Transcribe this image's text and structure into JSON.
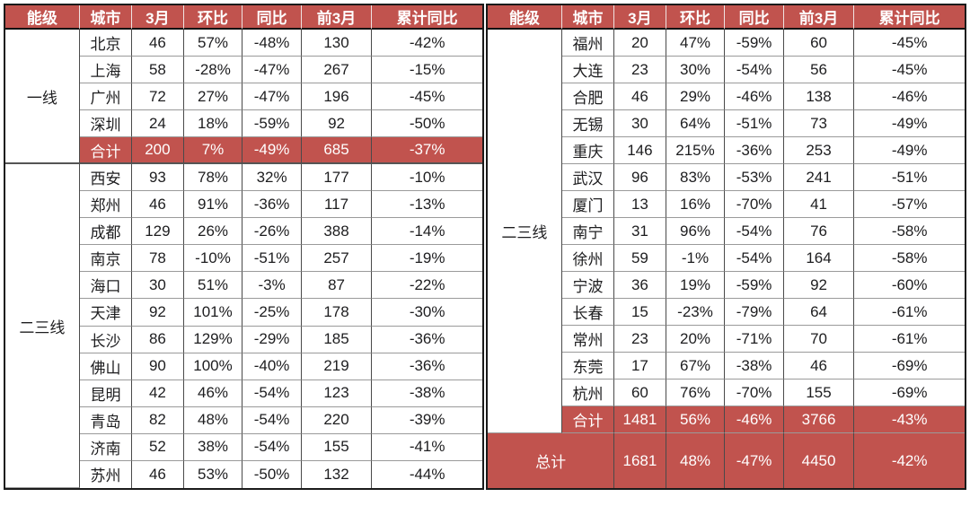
{
  "colors": {
    "accent_red": "#c1534e",
    "header_text": "#ffffff",
    "body_text": "#1d1d1f",
    "grid_dark": "#4a4a4a",
    "grid_light": "#9a9a9a"
  },
  "chart_data": {
    "type": "table",
    "columns": [
      "能级",
      "城市",
      "3月",
      "环比",
      "同比",
      "前3月",
      "累计同比"
    ],
    "left": {
      "groups": [
        {
          "tier": "一线",
          "cities": [
            [
              "北京",
              "46",
              "57%",
              "-48%",
              "130",
              "-42%"
            ],
            [
              "上海",
              "58",
              "-28%",
              "-47%",
              "267",
              "-15%"
            ],
            [
              "广州",
              "72",
              "27%",
              "-47%",
              "196",
              "-45%"
            ],
            [
              "深圳",
              "24",
              "18%",
              "-59%",
              "92",
              "-50%"
            ]
          ],
          "subtotal": [
            "合计",
            "200",
            "7%",
            "-49%",
            "685",
            "-37%"
          ]
        },
        {
          "tier": "二三线",
          "cities": [
            [
              "西安",
              "93",
              "78%",
              "32%",
              "177",
              "-10%"
            ],
            [
              "郑州",
              "46",
              "91%",
              "-36%",
              "117",
              "-13%"
            ],
            [
              "成都",
              "129",
              "26%",
              "-26%",
              "388",
              "-14%"
            ],
            [
              "南京",
              "78",
              "-10%",
              "-51%",
              "257",
              "-19%"
            ],
            [
              "海口",
              "30",
              "51%",
              "-3%",
              "87",
              "-22%"
            ],
            [
              "天津",
              "92",
              "101%",
              "-25%",
              "178",
              "-30%"
            ],
            [
              "长沙",
              "86",
              "129%",
              "-29%",
              "185",
              "-36%"
            ],
            [
              "佛山",
              "90",
              "100%",
              "-40%",
              "219",
              "-36%"
            ],
            [
              "昆明",
              "42",
              "46%",
              "-54%",
              "123",
              "-38%"
            ],
            [
              "青岛",
              "82",
              "48%",
              "-54%",
              "220",
              "-39%"
            ],
            [
              "济南",
              "52",
              "38%",
              "-54%",
              "155",
              "-41%"
            ],
            [
              "苏州",
              "46",
              "53%",
              "-50%",
              "132",
              "-44%"
            ]
          ],
          "subtotal": null
        }
      ]
    },
    "right": {
      "groups": [
        {
          "tier": "二三线",
          "cities": [
            [
              "福州",
              "20",
              "47%",
              "-59%",
              "60",
              "-45%"
            ],
            [
              "大连",
              "23",
              "30%",
              "-54%",
              "56",
              "-45%"
            ],
            [
              "合肥",
              "46",
              "29%",
              "-46%",
              "138",
              "-46%"
            ],
            [
              "无锡",
              "30",
              "64%",
              "-51%",
              "73",
              "-49%"
            ],
            [
              "重庆",
              "146",
              "215%",
              "-36%",
              "253",
              "-49%"
            ],
            [
              "武汉",
              "96",
              "83%",
              "-53%",
              "241",
              "-51%"
            ],
            [
              "厦门",
              "13",
              "16%",
              "-70%",
              "41",
              "-57%"
            ],
            [
              "南宁",
              "31",
              "96%",
              "-54%",
              "76",
              "-58%"
            ],
            [
              "徐州",
              "59",
              "-1%",
              "-54%",
              "164",
              "-58%"
            ],
            [
              "宁波",
              "36",
              "19%",
              "-59%",
              "92",
              "-60%"
            ],
            [
              "长春",
              "15",
              "-23%",
              "-79%",
              "64",
              "-61%"
            ],
            [
              "常州",
              "23",
              "20%",
              "-71%",
              "70",
              "-61%"
            ],
            [
              "东莞",
              "17",
              "67%",
              "-38%",
              "46",
              "-69%"
            ],
            [
              "杭州",
              "60",
              "76%",
              "-70%",
              "155",
              "-69%"
            ]
          ],
          "subtotal": [
            "合计",
            "1481",
            "56%",
            "-46%",
            "3766",
            "-43%"
          ]
        }
      ],
      "grand_total": [
        "总计",
        "1681",
        "48%",
        "-47%",
        "4450",
        "-42%"
      ]
    }
  }
}
